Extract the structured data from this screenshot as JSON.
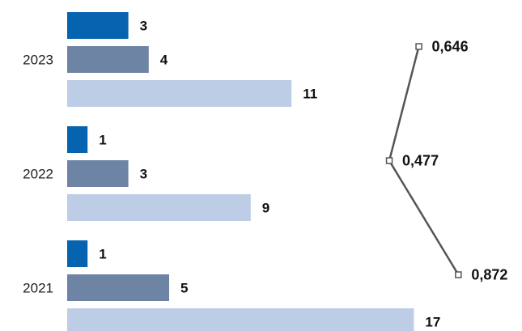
{
  "chart_data": {
    "type": "bar",
    "orientation": "horizontal",
    "categories": [
      "2023",
      "2022",
      "2021"
    ],
    "series": [
      {
        "values": [
          3,
          1,
          1
        ],
        "color": "#0563af"
      },
      {
        "values": [
          4,
          3,
          5
        ],
        "color": "#6d84a4"
      },
      {
        "values": [
          11,
          9,
          17
        ],
        "color": "#bccde5"
      }
    ],
    "line_series": {
      "values": [
        0.646,
        0.477,
        0.872
      ],
      "labels": [
        "0,646",
        "0,477",
        "0,872"
      ],
      "color": "#555555"
    },
    "grid": false,
    "legend": "none"
  }
}
